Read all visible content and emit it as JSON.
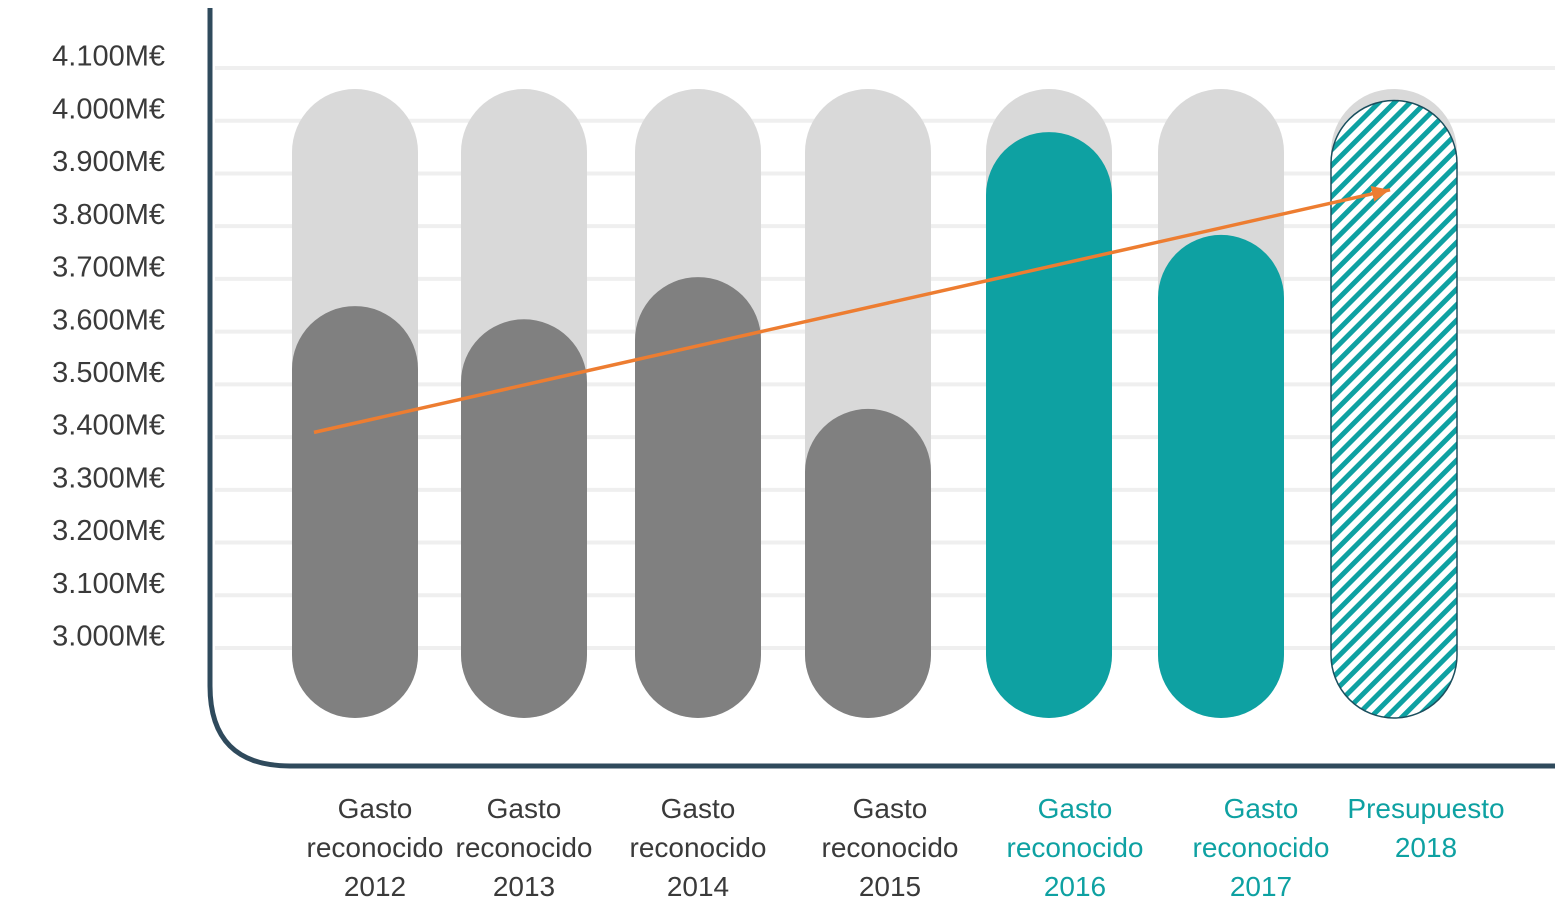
{
  "chart_data": {
    "type": "bar",
    "y_tick_labels": [
      "3.000M€",
      "3.100M€",
      "3.200M€",
      "3.300M€",
      "3.400M€",
      "3.500M€",
      "3.600M€",
      "3.700M€",
      "3.800M€",
      "3.900M€",
      "4.000M€",
      "4.100M€"
    ],
    "ylim": [
      3000,
      4100
    ],
    "grid": true,
    "categories": [
      [
        "Gasto",
        "reconocido",
        "2012"
      ],
      [
        "Gasto",
        "reconocido",
        "2013"
      ],
      [
        "Gasto",
        "reconocido",
        "2014"
      ],
      [
        "Gasto",
        "reconocido",
        "2015"
      ],
      [
        "Gasto",
        "reconocido",
        "2016"
      ],
      [
        "Gasto",
        "reconocido",
        "2017"
      ],
      [
        "Presupuesto",
        "2018"
      ]
    ],
    "values": [
      3510,
      3485,
      3565,
      3315,
      3840,
      3645,
      3900
    ],
    "trend_line": {
      "from": 3390,
      "to": 3850
    },
    "colors": {
      "past": "#808080",
      "recent": "#0ea1a2",
      "budget_hatch": "#0ea1a2",
      "background_pill": "#d9d9d9",
      "trend": "#ed7d31",
      "axis": "#2f4a5c",
      "grid": "#efefef",
      "tick_text": "#3a3a3a"
    },
    "bar_styles": [
      "past",
      "past",
      "past",
      "past",
      "recent",
      "recent",
      "budget_hatch"
    ]
  }
}
